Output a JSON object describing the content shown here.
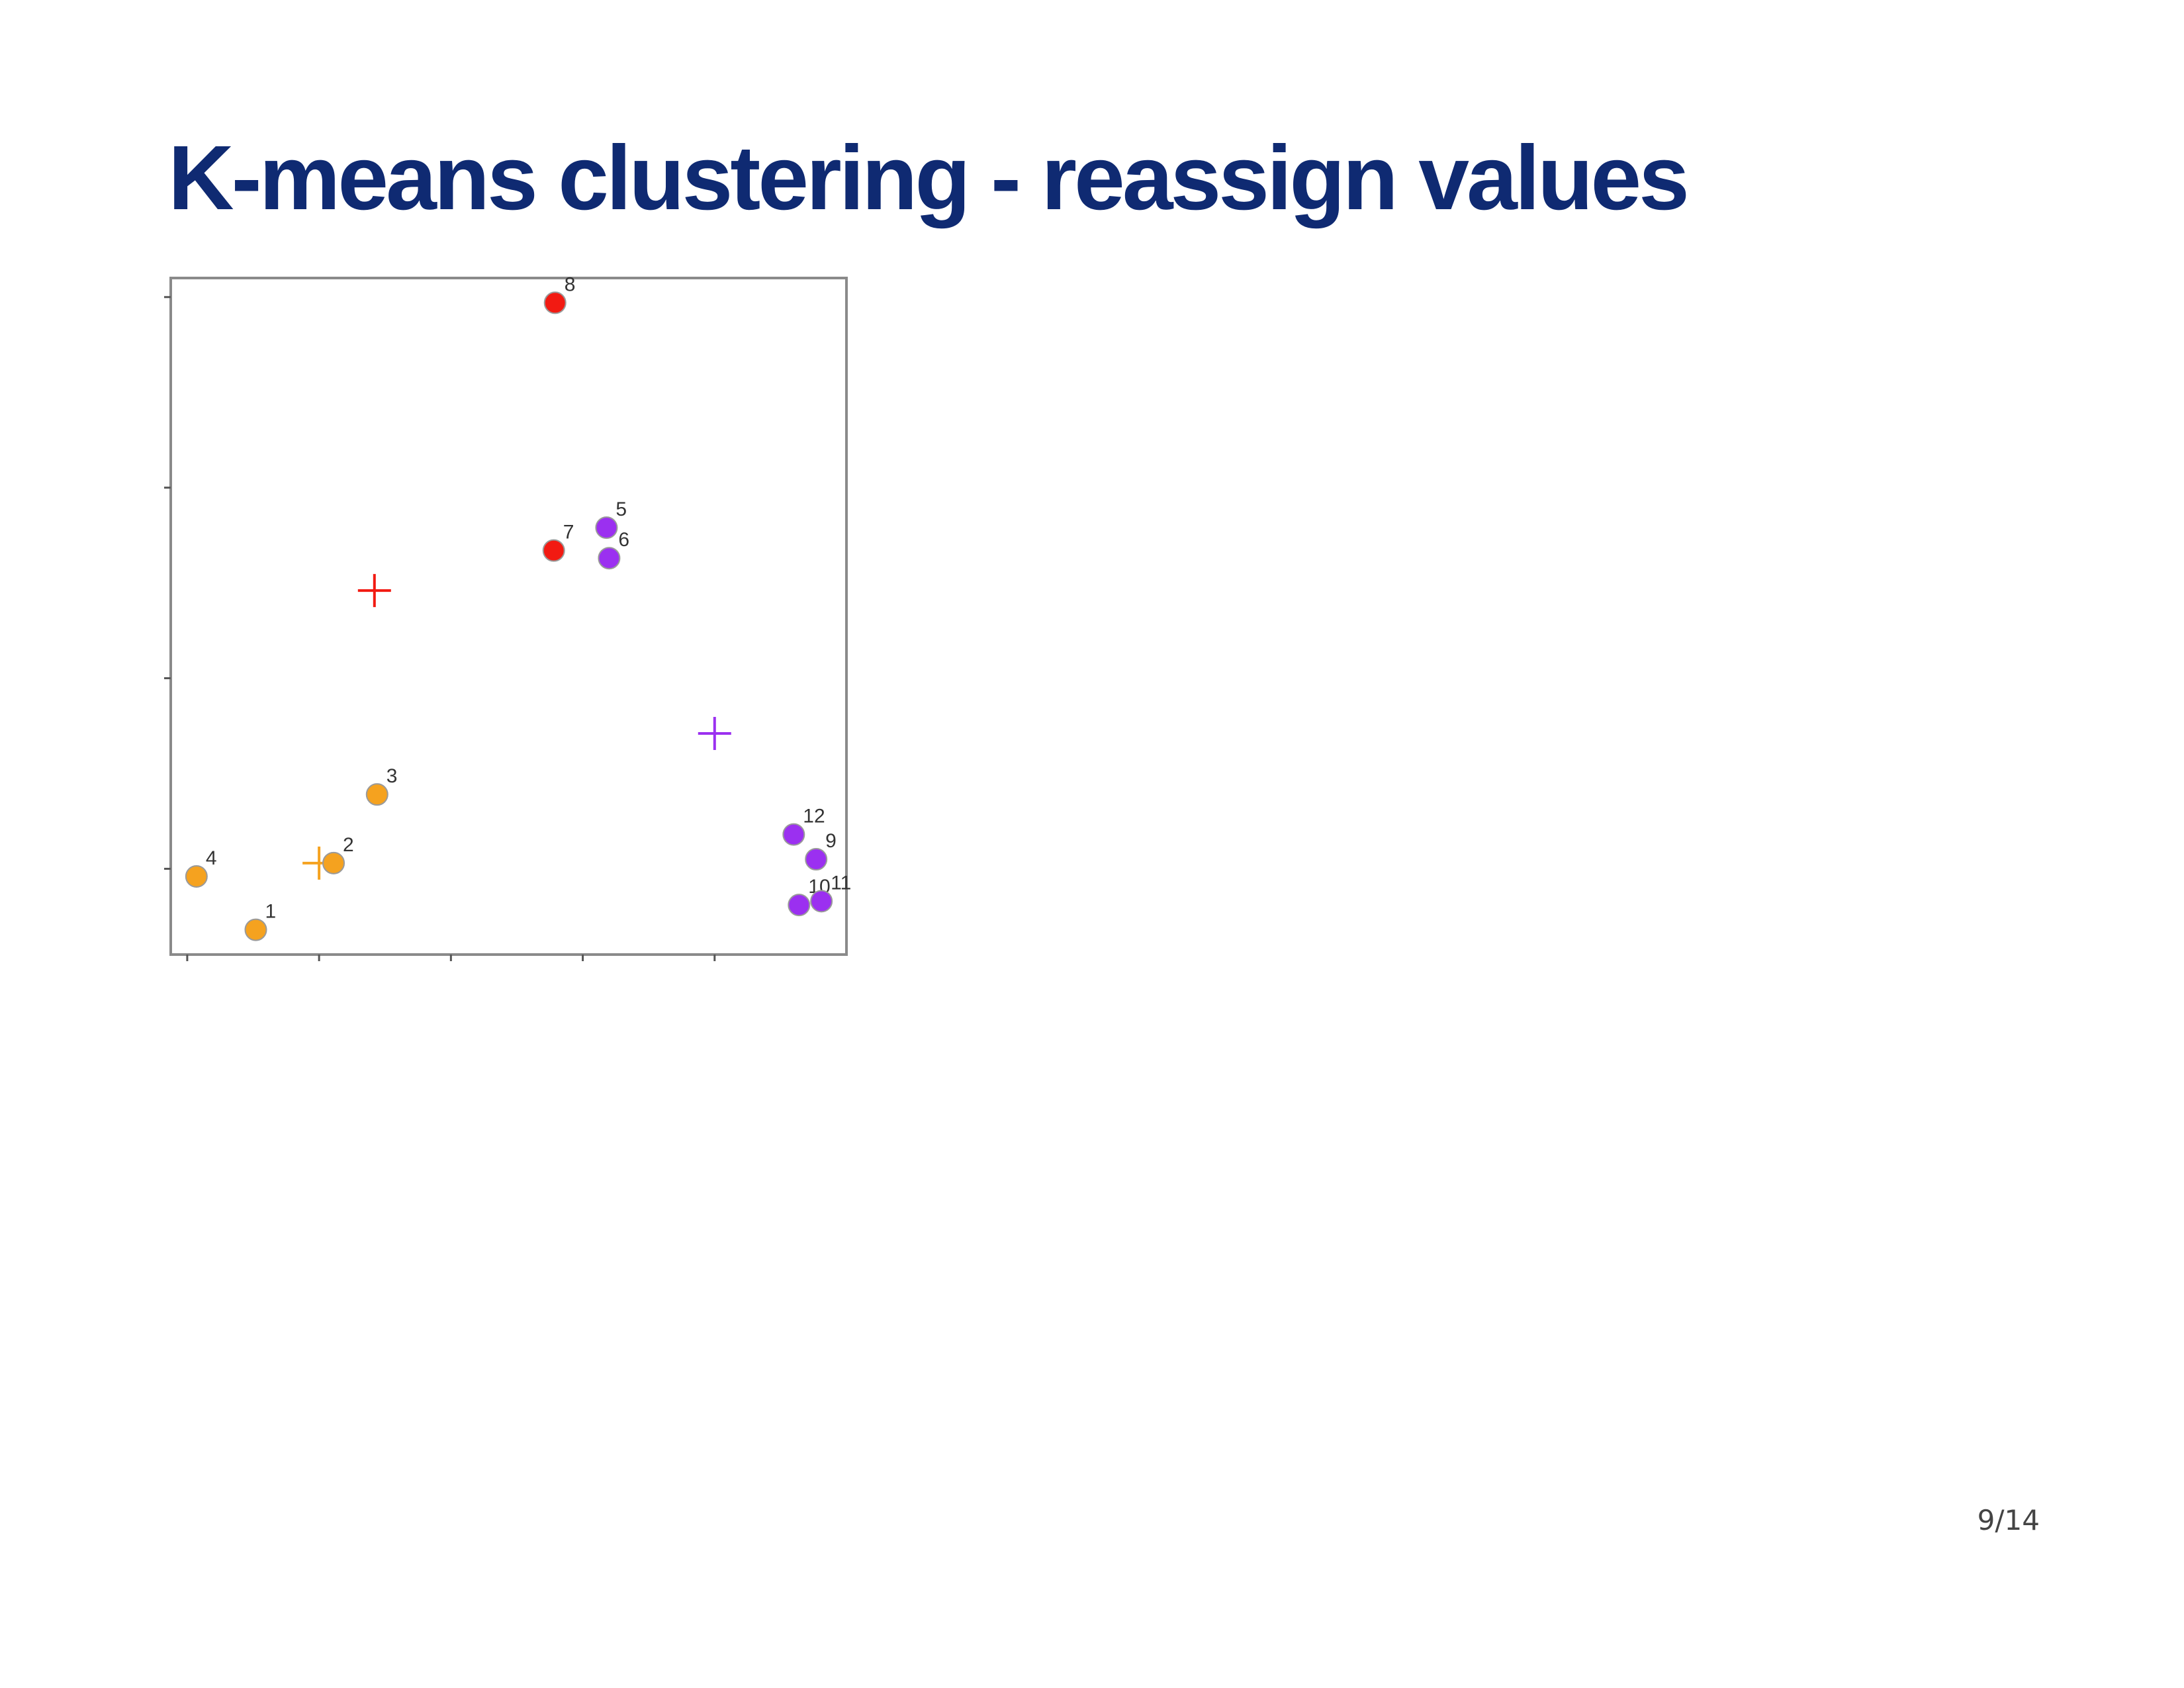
{
  "slide": {
    "title": "K-means clustering - reassign values",
    "page_number": "9/14"
  },
  "colors": {
    "title": "#0f2a72",
    "cluster_orange": "#f5a21f",
    "cluster_red": "#f21a12",
    "cluster_purple": "#9b30f0",
    "axis": "#555555",
    "point_label": "#333333"
  },
  "chart_data": {
    "type": "scatter",
    "title": "",
    "xlabel": "",
    "ylabel": "",
    "xlim": [
      0.875,
      6.0
    ],
    "ylim": [
      0.55,
      4.1
    ],
    "x_ticks": [
      1,
      2,
      3,
      4,
      5
    ],
    "y_ticks": [
      1,
      2,
      3,
      4
    ],
    "grid": false,
    "points": [
      {
        "label": "1",
        "x": 1.52,
        "y": 0.68,
        "cluster": "orange"
      },
      {
        "label": "2",
        "x": 2.11,
        "y": 1.03,
        "cluster": "orange"
      },
      {
        "label": "3",
        "x": 2.44,
        "y": 1.39,
        "cluster": "orange"
      },
      {
        "label": "4",
        "x": 1.07,
        "y": 0.96,
        "cluster": "orange"
      },
      {
        "label": "5",
        "x": 4.18,
        "y": 2.79,
        "cluster": "purple"
      },
      {
        "label": "6",
        "x": 4.2,
        "y": 2.63,
        "cluster": "purple"
      },
      {
        "label": "7",
        "x": 3.78,
        "y": 2.67,
        "cluster": "red"
      },
      {
        "label": "8",
        "x": 3.79,
        "y": 3.97,
        "cluster": "red"
      },
      {
        "label": "9",
        "x": 5.77,
        "y": 1.05,
        "cluster": "purple"
      },
      {
        "label": "10",
        "x": 5.64,
        "y": 0.81,
        "cluster": "purple"
      },
      {
        "label": "11",
        "x": 5.81,
        "y": 0.83,
        "cluster": "purple"
      },
      {
        "label": "12",
        "x": 5.6,
        "y": 1.18,
        "cluster": "purple"
      }
    ],
    "centroids": [
      {
        "cluster": "orange",
        "x": 2.0,
        "y": 1.03
      },
      {
        "cluster": "red",
        "x": 2.42,
        "y": 2.46
      },
      {
        "cluster": "purple",
        "x": 5.0,
        "y": 1.71
      }
    ]
  }
}
